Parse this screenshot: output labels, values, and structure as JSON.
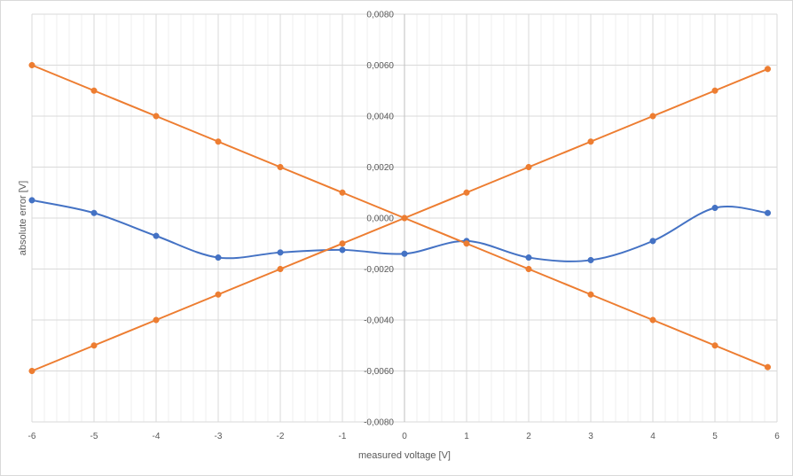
{
  "chart_data": {
    "type": "scatter",
    "title": "",
    "xlabel": "measured voltage [V]",
    "ylabel": "absolute error [V]",
    "xlim": [
      -6,
      6
    ],
    "ylim": [
      -0.008,
      0.008
    ],
    "x_ticks": [
      -6,
      -5,
      -4,
      -3,
      -2,
      -1,
      0,
      1,
      2,
      3,
      4,
      5,
      6
    ],
    "x_tick_labels": [
      "-6",
      "-5",
      "-4",
      "-3",
      "-2",
      "-1",
      "0",
      "1",
      "2",
      "3",
      "4",
      "5",
      "6"
    ],
    "y_ticks": [
      0.008,
      0.006,
      0.004,
      0.002,
      0,
      -0.002,
      -0.004,
      -0.006,
      -0.008
    ],
    "y_tick_labels": [
      "0,0080",
      "0,0060",
      "0,0040",
      "0,0020",
      "0,0000",
      "-0,0020",
      "-0,0040",
      "-0,0060",
      "-0,0080"
    ],
    "grid": true,
    "minor_x_grid": true,
    "series": [
      {
        "color": "#4472c4",
        "smooth": true,
        "x": [
          -6,
          -5,
          -4,
          -3,
          -2,
          -1,
          0,
          1,
          2,
          3,
          4,
          5,
          5.85
        ],
        "y": [
          0.0007,
          0.0002,
          -0.0007,
          -0.00155,
          -0.00135,
          -0.00125,
          -0.0014,
          -0.0009,
          -0.00155,
          -0.00165,
          -0.0009,
          0.0004,
          0.0002
        ]
      },
      {
        "color": "#ed7d31",
        "smooth": false,
        "x": [
          -6,
          -5,
          -4,
          -3,
          -2,
          -1,
          0,
          1,
          2,
          3,
          4,
          5,
          5.85
        ],
        "y": [
          0.006,
          0.005,
          0.004,
          0.003,
          0.002,
          0.001,
          0,
          -0.001,
          -0.002,
          -0.003,
          -0.004,
          -0.005,
          -0.00585
        ]
      },
      {
        "color": "#ed7d31",
        "smooth": false,
        "x": [
          -6,
          -5,
          -4,
          -3,
          -2,
          -1,
          0,
          1,
          2,
          3,
          4,
          5,
          5.85
        ],
        "y": [
          -0.006,
          -0.005,
          -0.004,
          -0.003,
          -0.002,
          -0.001,
          0,
          0.001,
          0.002,
          0.003,
          0.004,
          0.005,
          0.00585
        ]
      }
    ]
  }
}
